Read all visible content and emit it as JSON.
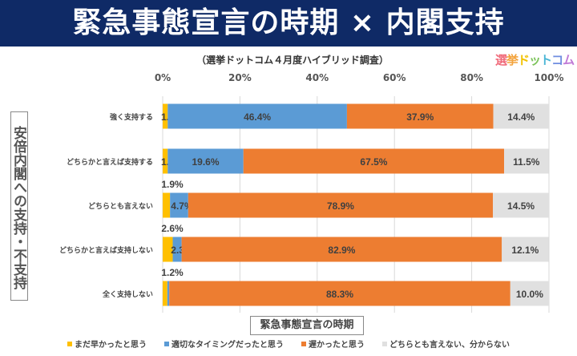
{
  "title": "緊急事態宣言の時期 × 内閣支持",
  "logo": "選挙ドットコム",
  "chart_data": {
    "type": "bar",
    "orientation": "horizontal",
    "stacked": true,
    "subtitle": "（選挙ドットコム４月度ハイブリッド調査）",
    "ylabel": "安倍内閣への支持・不支持",
    "xlabel": "緊急事態宣言の時期",
    "xlim": [
      0,
      100
    ],
    "xticks": [
      "0%",
      "20%",
      "40%",
      "60%",
      "80%",
      "100%"
    ],
    "grid": true,
    "legend": "bottom",
    "categories": [
      "強く支持する",
      "どちらかと言えば支持する",
      "どちらとも言えない",
      "どちらかと言えば支持しない",
      "全く支持しない"
    ],
    "series": [
      {
        "name": "まだ早かったと思う",
        "color": "#ffc000",
        "values": [
          1.3,
          1.3,
          1.9,
          2.6,
          1.2
        ]
      },
      {
        "name": "適切なタイミングだったと思う",
        "color": "#5b9bd5",
        "values": [
          46.4,
          19.6,
          4.7,
          2.3,
          0.5
        ]
      },
      {
        "name": "遅かったと思う",
        "color": "#ed7d31",
        "values": [
          37.9,
          67.5,
          78.9,
          82.9,
          88.3
        ]
      },
      {
        "name": "どちらとも言えない、分からない",
        "color": "#e0e0e0",
        "values": [
          14.4,
          11.5,
          14.5,
          12.1,
          10.0
        ]
      }
    ]
  }
}
